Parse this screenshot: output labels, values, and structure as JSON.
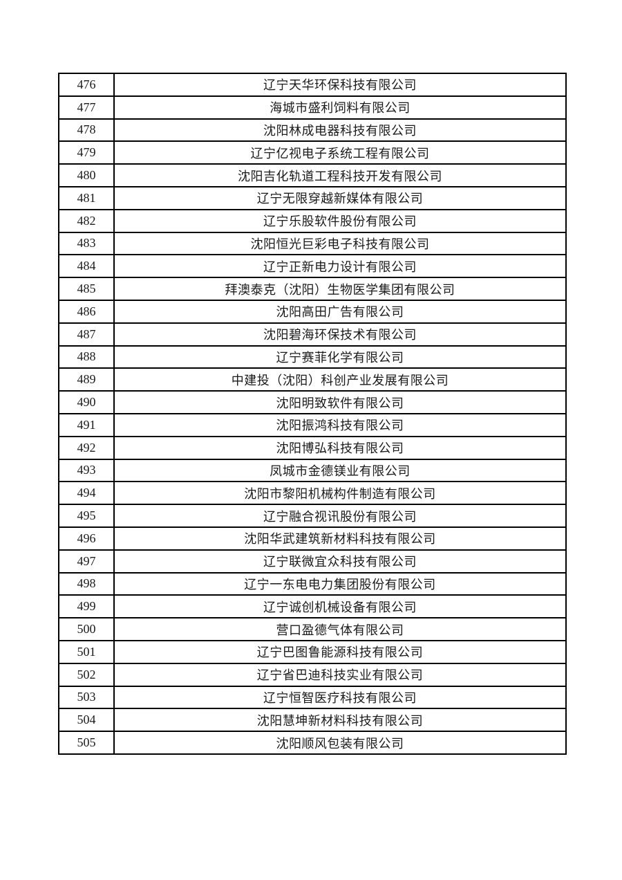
{
  "page": {
    "background_color": "#ffffff",
    "border_color": "#000000",
    "text_color": "#1a1a1a"
  },
  "table": {
    "columns": [
      "number",
      "company_name"
    ],
    "rows": [
      {
        "number": "476",
        "name": "辽宁天华环保科技有限公司"
      },
      {
        "number": "477",
        "name": "海城市盛利饲料有限公司"
      },
      {
        "number": "478",
        "name": "沈阳林成电器科技有限公司"
      },
      {
        "number": "479",
        "name": "辽宁亿视电子系统工程有限公司"
      },
      {
        "number": "480",
        "name": "沈阳吉化轨道工程科技开发有限公司"
      },
      {
        "number": "481",
        "name": "辽宁无限穿越新媒体有限公司"
      },
      {
        "number": "482",
        "name": "辽宁乐股软件股份有限公司"
      },
      {
        "number": "483",
        "name": "沈阳恒光巨彩电子科技有限公司"
      },
      {
        "number": "484",
        "name": "辽宁正新电力设计有限公司"
      },
      {
        "number": "485",
        "name": "拜澳泰克（沈阳）生物医学集团有限公司"
      },
      {
        "number": "486",
        "name": "沈阳高田广告有限公司"
      },
      {
        "number": "487",
        "name": "沈阳碧海环保技术有限公司"
      },
      {
        "number": "488",
        "name": "辽宁赛菲化学有限公司"
      },
      {
        "number": "489",
        "name": "中建投（沈阳）科创产业发展有限公司"
      },
      {
        "number": "490",
        "name": "沈阳明致软件有限公司"
      },
      {
        "number": "491",
        "name": "沈阳振鸿科技有限公司"
      },
      {
        "number": "492",
        "name": "沈阳博弘科技有限公司"
      },
      {
        "number": "493",
        "name": "凤城市金德镁业有限公司"
      },
      {
        "number": "494",
        "name": "沈阳市黎阳机械构件制造有限公司"
      },
      {
        "number": "495",
        "name": "辽宁融合视讯股份有限公司"
      },
      {
        "number": "496",
        "name": "沈阳华武建筑新材料科技有限公司"
      },
      {
        "number": "497",
        "name": "辽宁联微宜众科技有限公司"
      },
      {
        "number": "498",
        "name": "辽宁一东电电力集团股份有限公司"
      },
      {
        "number": "499",
        "name": "辽宁诚创机械设备有限公司"
      },
      {
        "number": "500",
        "name": "营口盈德气体有限公司"
      },
      {
        "number": "501",
        "name": "辽宁巴图鲁能源科技有限公司"
      },
      {
        "number": "502",
        "name": "辽宁省巴迪科技实业有限公司"
      },
      {
        "number": "503",
        "name": "辽宁恒智医疗科技有限公司"
      },
      {
        "number": "504",
        "name": "沈阳慧坤新材料科技有限公司"
      },
      {
        "number": "505",
        "name": "沈阳顺风包装有限公司"
      }
    ]
  }
}
